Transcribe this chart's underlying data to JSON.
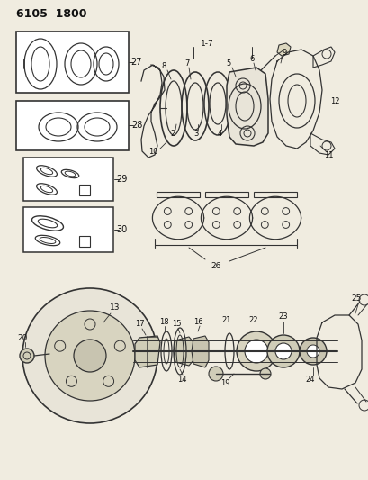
{
  "title": "6105  1800",
  "bg_color": "#f0ece0",
  "line_color": "#333333",
  "text_color": "#111111",
  "fig_width": 4.1,
  "fig_height": 5.33,
  "dpi": 100
}
